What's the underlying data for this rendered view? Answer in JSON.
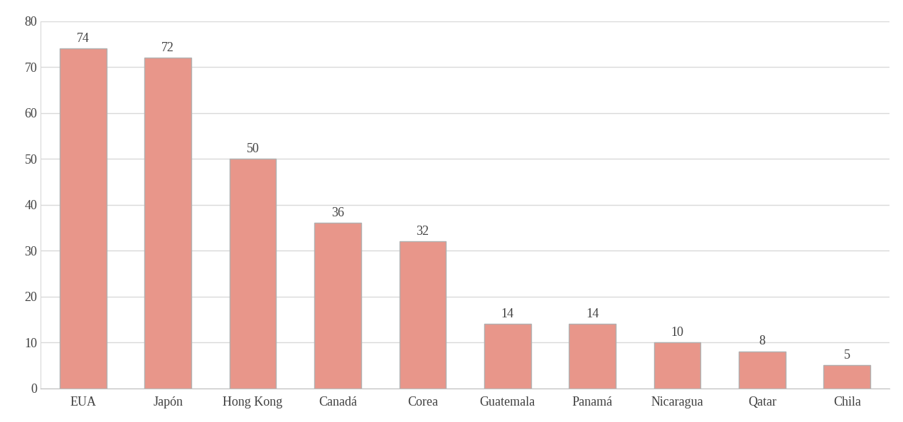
{
  "chart_data": {
    "type": "bar",
    "categories": [
      "EUA",
      "Japón",
      "Hong Kong",
      "Canadá",
      "Corea",
      "Guatemala",
      "Panamá",
      "Nicaragua",
      "Qatar",
      "Chila"
    ],
    "values": [
      74,
      72,
      50,
      36,
      32,
      14,
      14,
      10,
      8,
      5
    ],
    "color": "#e8968a",
    "ylim": [
      0,
      80
    ],
    "yticks": [
      0,
      10,
      20,
      30,
      40,
      50,
      60,
      70,
      80
    ],
    "grid": true,
    "data_labels": true
  }
}
